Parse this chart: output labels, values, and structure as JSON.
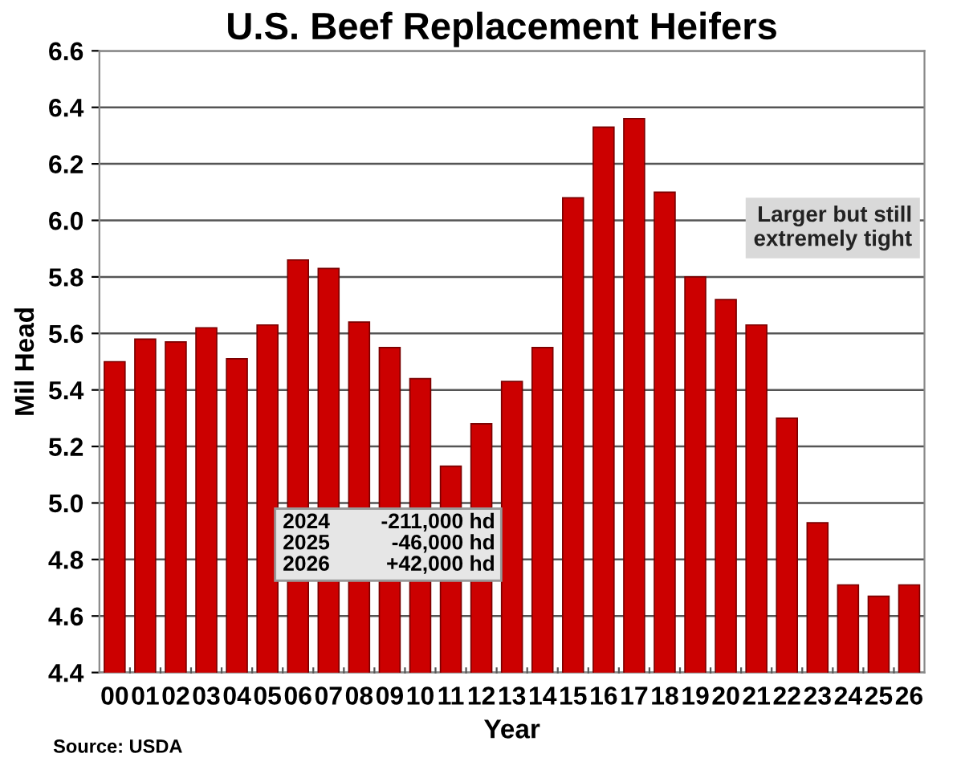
{
  "chart_data": {
    "type": "bar",
    "title": "U.S. Beef Replacement Heifers",
    "xlabel": "Year",
    "ylabel": "Mil Head",
    "categories": [
      "00",
      "01",
      "02",
      "03",
      "04",
      "05",
      "06",
      "07",
      "08",
      "09",
      "10",
      "11",
      "12",
      "13",
      "14",
      "15",
      "16",
      "17",
      "18",
      "19",
      "20",
      "21",
      "22",
      "23",
      "24",
      "25",
      "26"
    ],
    "values": [
      5.5,
      5.58,
      5.57,
      5.62,
      5.51,
      5.63,
      5.86,
      5.83,
      5.64,
      5.55,
      5.44,
      5.13,
      5.28,
      5.43,
      5.55,
      6.08,
      6.33,
      6.36,
      6.1,
      5.8,
      5.72,
      5.63,
      5.3,
      4.93,
      4.71,
      4.67,
      4.71
    ],
    "color": "#cc0000",
    "ylim": [
      4.4,
      6.6
    ],
    "yticks": [
      4.4,
      4.6,
      4.8,
      {
        "value": 5.0,
        "label": "5.0"
      },
      5.2,
      5.4,
      5.6,
      5.8,
      {
        "value": 6.0,
        "label": "6.0"
      },
      6.2,
      6.4,
      6.6
    ],
    "grid": "y",
    "annotations": [
      "Source: USDA",
      "Larger but still\nextremely tight",
      "2024 -211,000 hd",
      "2025 -46,000 hd",
      "2026 +42,000 hd"
    ]
  }
}
